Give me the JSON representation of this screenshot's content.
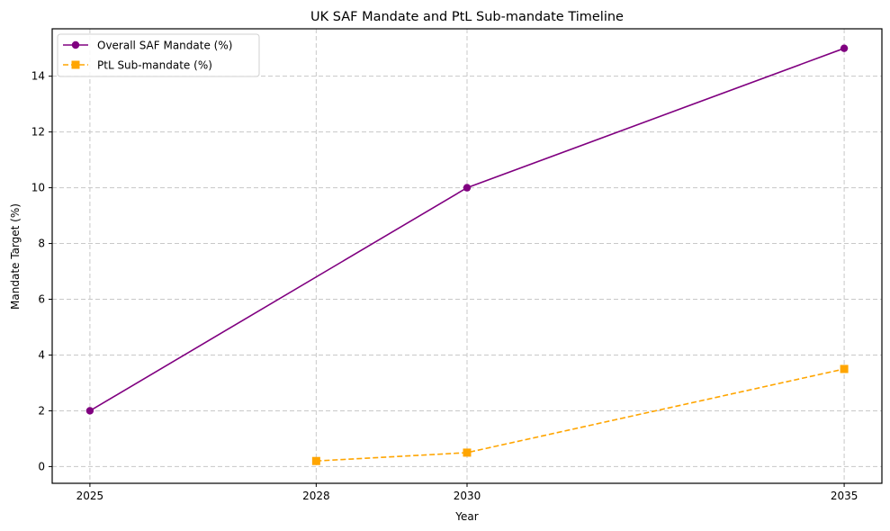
{
  "chart_data": {
    "type": "line",
    "title": "UK SAF Mandate and PtL Sub-mandate Timeline",
    "xlabel": "Year",
    "ylabel": "Mandate Target (%)",
    "xlim": [
      2024.5,
      2035.5
    ],
    "ylim": [
      -0.6,
      15.7
    ],
    "x_ticks": [
      2025,
      2028,
      2030,
      2035
    ],
    "y_ticks": [
      0,
      2,
      4,
      6,
      8,
      10,
      12,
      14
    ],
    "grid": true,
    "legend_position": "top-left",
    "series": [
      {
        "name": "Overall SAF Mandate (%)",
        "color": "#800080",
        "marker": "circle",
        "linestyle": "solid",
        "x": [
          2025,
          2030,
          2035
        ],
        "y": [
          2,
          10,
          15
        ]
      },
      {
        "name": "PtL Sub-mandate (%)",
        "color": "#FFA500",
        "marker": "square",
        "linestyle": "dashed",
        "x": [
          2028,
          2030,
          2035
        ],
        "y": [
          0.2,
          0.5,
          3.5
        ]
      }
    ]
  }
}
